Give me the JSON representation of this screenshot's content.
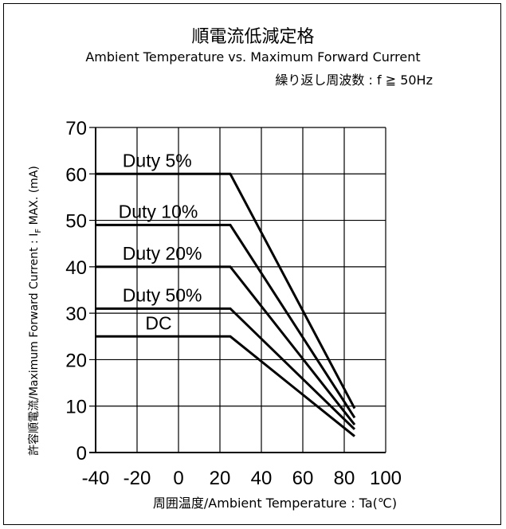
{
  "chart_data": {
    "type": "line",
    "title": "順電流低減定格",
    "subtitle": "Ambient Temperature vs. Maximum Forward Current",
    "condition": "繰り返し周波数 : f ≧ 50Hz",
    "xlabel": "周囲温度/Ambient Temperature : Ta(℃)",
    "ylabel_main": "許容順電流/Maximum Forward Current : I",
    "ylabel_sub": "F",
    "ylabel_tail": " MAX. (mA)",
    "xlim": [
      -40,
      100
    ],
    "ylim": [
      0,
      70
    ],
    "xticks": [
      -40,
      -20,
      0,
      20,
      40,
      60,
      80,
      100
    ],
    "yticks": [
      0,
      10,
      20,
      30,
      40,
      50,
      60,
      70
    ],
    "grid": true,
    "series": [
      {
        "name": "Duty 5%",
        "x": [
          -40,
          25,
          85
        ],
        "y": [
          60,
          60,
          9.5
        ]
      },
      {
        "name": "Duty 10%",
        "x": [
          -40,
          25,
          85
        ],
        "y": [
          49,
          49,
          7.5
        ]
      },
      {
        "name": "Duty 20%",
        "x": [
          -40,
          25,
          85
        ],
        "y": [
          40,
          40,
          6
        ]
      },
      {
        "name": "Duty 50%",
        "x": [
          -40,
          25,
          85
        ],
        "y": [
          31,
          31,
          5
        ]
      },
      {
        "name": "DC",
        "x": [
          -40,
          25,
          85
        ],
        "y": [
          25,
          25,
          3.5
        ]
      }
    ],
    "colors": {
      "line": "#000000",
      "grid": "#000000"
    }
  }
}
